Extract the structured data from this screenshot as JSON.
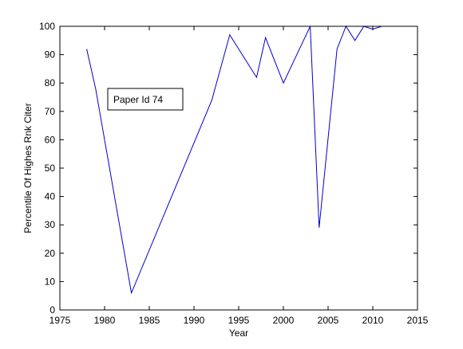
{
  "chart_data": {
    "type": "line",
    "xlabel": "Year",
    "ylabel": "Percentile Of Highes Rnk Citer",
    "xlim": [
      1975,
      2015
    ],
    "ylim": [
      0,
      100
    ],
    "xticks": [
      1975,
      1980,
      1985,
      1990,
      1995,
      2000,
      2005,
      2010,
      2015
    ],
    "yticks": [
      0,
      10,
      20,
      30,
      40,
      50,
      60,
      70,
      80,
      90,
      100
    ],
    "grid": false,
    "legend_position": "upper-left",
    "series": [
      {
        "name": "Paper Id 74",
        "color": "#0000cc",
        "x": [
          1978,
          1979,
          1983,
          1992,
          1994,
          1997,
          1998,
          2000,
          2003,
          2004,
          2006,
          2007,
          2008,
          2009,
          2010,
          2011,
          2013
        ],
        "y": [
          92,
          78,
          6,
          74,
          97,
          82,
          96,
          80,
          100,
          29,
          92,
          100,
          95,
          100,
          99,
          100,
          100
        ]
      }
    ]
  }
}
